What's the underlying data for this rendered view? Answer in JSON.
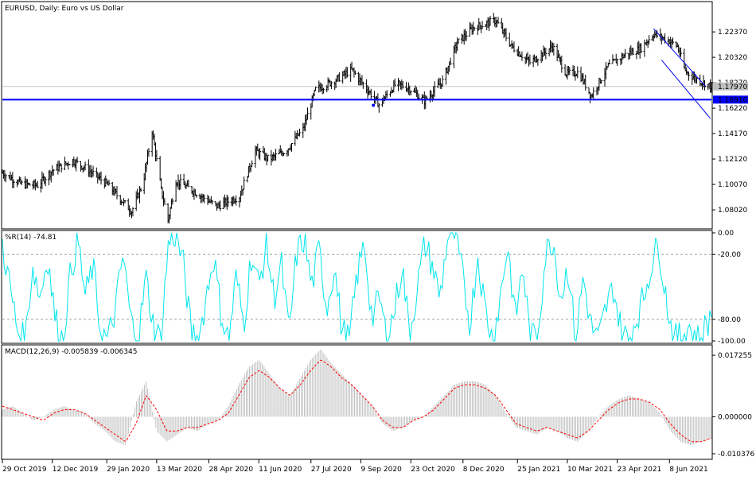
{
  "chart_data": [
    {
      "type": "candlestick",
      "title": "EURUSD, Daily:  Euro vs US Dollar",
      "ylim": [
        1.0655,
        1.2475
      ],
      "yticks": [
        "1.22370",
        "1.20320",
        "1.18270",
        "1.16220",
        "1.14170",
        "1.12120",
        "1.10070",
        "1.08020"
      ],
      "current_price_label": "1.17970",
      "current_price": 1.1797,
      "horizontal_line_label": "1.16910",
      "horizontal_line": 1.1691,
      "channel_lines": [
        {
          "from": {
            "date": "2021-05-25",
            "price": 1.2263
          },
          "to": {
            "date": "2021-07-10",
            "price": 1.1797
          }
        },
        {
          "from": {
            "date": "2021-06-01",
            "price": 1.201
          },
          "to": {
            "date": "2021-07-14",
            "price": 1.154
          }
        }
      ],
      "close_points": [
        [
          "2019-10-29",
          1.11
        ],
        [
          "2019-11-15",
          1.101
        ],
        [
          "2019-11-29",
          1.1
        ],
        [
          "2019-12-12",
          1.112
        ],
        [
          "2019-12-30",
          1.12
        ],
        [
          "2020-01-12",
          1.113
        ],
        [
          "2020-01-29",
          1.101
        ],
        [
          "2020-02-12",
          1.087
        ],
        [
          "2020-02-20",
          1.079
        ],
        [
          "2020-03-01",
          1.102
        ],
        [
          "2020-03-09",
          1.144
        ],
        [
          "2020-03-17",
          1.096
        ],
        [
          "2020-03-23",
          1.072
        ],
        [
          "2020-03-30",
          1.104
        ],
        [
          "2020-04-15",
          1.095
        ],
        [
          "2020-05-05",
          1.083
        ],
        [
          "2020-05-25",
          1.091
        ],
        [
          "2020-06-08",
          1.128
        ],
        [
          "2020-06-20",
          1.121
        ],
        [
          "2020-07-05",
          1.128
        ],
        [
          "2020-07-20",
          1.145
        ],
        [
          "2020-07-31",
          1.177
        ],
        [
          "2020-08-18",
          1.185
        ],
        [
          "2020-09-01",
          1.193
        ],
        [
          "2020-09-15",
          1.177
        ],
        [
          "2020-09-25",
          1.165
        ],
        [
          "2020-10-10",
          1.182
        ],
        [
          "2020-10-22",
          1.178
        ],
        [
          "2020-11-04",
          1.168
        ],
        [
          "2020-11-20",
          1.184
        ],
        [
          "2020-12-03",
          1.215
        ],
        [
          "2020-12-17",
          1.227
        ],
        [
          "2021-01-06",
          1.233
        ],
        [
          "2021-01-20",
          1.212
        ],
        [
          "2021-02-05",
          1.199
        ],
        [
          "2021-02-25",
          1.212
        ],
        [
          "2021-03-09",
          1.19
        ],
        [
          "2021-03-20",
          1.191
        ],
        [
          "2021-03-31",
          1.172
        ],
        [
          "2021-04-15",
          1.196
        ],
        [
          "2021-05-01",
          1.206
        ],
        [
          "2021-05-13",
          1.21
        ],
        [
          "2021-05-25",
          1.222
        ],
        [
          "2021-06-07",
          1.217
        ],
        [
          "2021-06-15",
          1.212
        ],
        [
          "2021-06-22",
          1.192
        ],
        [
          "2021-07-01",
          1.186
        ],
        [
          "2021-07-14",
          1.18
        ]
      ]
    },
    {
      "type": "line",
      "title": "%R(14) -74.81",
      "ylim": [
        -100,
        0
      ],
      "yticks": [
        "0.00",
        "-20.00",
        "-80.00",
        "-100.00"
      ],
      "levels": [
        -20,
        -80
      ],
      "color": "#00e5ee",
      "series": [
        {
          "name": "%R(14)",
          "values": [
            -10,
            -50,
            -90,
            -100,
            -30,
            -60,
            -20,
            -80,
            -100,
            -40,
            -5,
            -60,
            -30,
            -90,
            -100,
            -70,
            -20,
            -80,
            -100,
            -40,
            -85,
            -100,
            -10,
            0,
            -30,
            -90,
            -100,
            -60,
            -20,
            -75,
            -100,
            -40,
            -85,
            -20,
            -50,
            -10,
            -60,
            -30,
            -95,
            -20,
            -5,
            -50,
            -15,
            -70,
            -30,
            -90,
            -100,
            -40,
            -10,
            -80,
            -60,
            -100,
            -70,
            -30,
            -95,
            -50,
            -10,
            -30,
            -60,
            -5,
            0,
            -40,
            -85,
            -20,
            -70,
            -100,
            -60,
            -10,
            -80,
            -30,
            -100,
            -90,
            -20,
            -5,
            -60,
            -30,
            -100,
            -40,
            -85,
            -100,
            -70,
            -50,
            -90,
            -100,
            -80,
            -60,
            -30,
            -10,
            -60,
            -100,
            -95,
            -85,
            -100,
            -90,
            -75
          ]
        }
      ]
    },
    {
      "type": "bar+line",
      "title": "MACD(12,26,9) -0.005839 -0.006345",
      "ylim": [
        -0.0115,
        0.0195
      ],
      "yticks": [
        "0.017255",
        "0.000000",
        "-0.010376"
      ],
      "histogram_color": "#c0c0c0",
      "signal_color": "#ff0000",
      "series": [
        {
          "name": "MACD",
          "values": [
            0.002,
            0.003,
            0.001,
            -0.001,
            0.0,
            0.002,
            0.003,
            0.002,
            0.001,
            -0.002,
            -0.004,
            -0.007,
            -0.008,
            0.004,
            0.01,
            -0.004,
            -0.007,
            -0.005,
            -0.003,
            -0.004,
            -0.002,
            -0.001,
            0.003,
            0.009,
            0.014,
            0.016,
            0.012,
            0.008,
            0.006,
            0.011,
            0.016,
            0.019,
            0.015,
            0.012,
            0.009,
            0.006,
            0.003,
            -0.002,
            -0.004,
            -0.003,
            -0.001,
            0.0,
            0.003,
            0.006,
            0.009,
            0.01,
            0.01,
            0.009,
            0.006,
            0.001,
            -0.003,
            -0.004,
            -0.005,
            -0.003,
            -0.004,
            -0.006,
            -0.007,
            -0.004,
            0.0,
            0.003,
            0.005,
            0.006,
            0.005,
            0.004,
            0.001,
            -0.004,
            -0.007,
            -0.008,
            -0.007,
            -0.006
          ]
        },
        {
          "name": "Signal",
          "values": [
            0.003,
            0.002,
            0.001,
            0.0,
            -0.001,
            0.001,
            0.002,
            0.002,
            0.001,
            -0.001,
            -0.003,
            -0.005,
            -0.007,
            -0.002,
            0.006,
            0.002,
            -0.004,
            -0.004,
            -0.003,
            -0.003,
            -0.002,
            -0.001,
            0.001,
            0.006,
            0.011,
            0.013,
            0.011,
            0.008,
            0.006,
            0.009,
            0.013,
            0.016,
            0.014,
            0.011,
            0.009,
            0.006,
            0.003,
            -0.001,
            -0.003,
            -0.003,
            -0.001,
            0.0,
            0.002,
            0.005,
            0.008,
            0.009,
            0.009,
            0.008,
            0.006,
            0.002,
            -0.002,
            -0.003,
            -0.004,
            -0.003,
            -0.004,
            -0.005,
            -0.006,
            -0.004,
            -0.001,
            0.002,
            0.004,
            0.005,
            0.005,
            0.004,
            0.002,
            -0.002,
            -0.005,
            -0.007,
            -0.007,
            -0.006
          ]
        }
      ]
    }
  ],
  "x_axis": {
    "tick_labels": [
      "29 Oct 2019",
      "12 Dec 2019",
      "29 Jan 2020",
      "13 Mar 2020",
      "28 Apr 2020",
      "11 Jun 2020",
      "27 Jul 2020",
      "9 Sep 2020",
      "23 Oct 2020",
      "8 Dec 2020",
      "25 Jan 2021",
      "10 Mar 2021",
      "23 Apr 2021",
      "8 Jun 2021"
    ],
    "tick_dates": [
      "2019-10-29",
      "2019-12-12",
      "2020-01-29",
      "2020-03-13",
      "2020-04-28",
      "2020-06-11",
      "2020-07-27",
      "2020-09-09",
      "2020-10-23",
      "2020-12-08",
      "2021-01-25",
      "2021-03-10",
      "2021-04-23",
      "2021-06-08"
    ],
    "start_date": "2019-10-29",
    "end_date": "2021-07-15"
  },
  "colors": {
    "price_bars": "#000000",
    "horizontal_line": "#0000ff",
    "current_price_box": "#c0c0c0",
    "wpr_line": "#00e5ee",
    "macd_histogram": "#c0c0c0",
    "macd_signal": "#ff0000",
    "channel": "#0000ff"
  }
}
